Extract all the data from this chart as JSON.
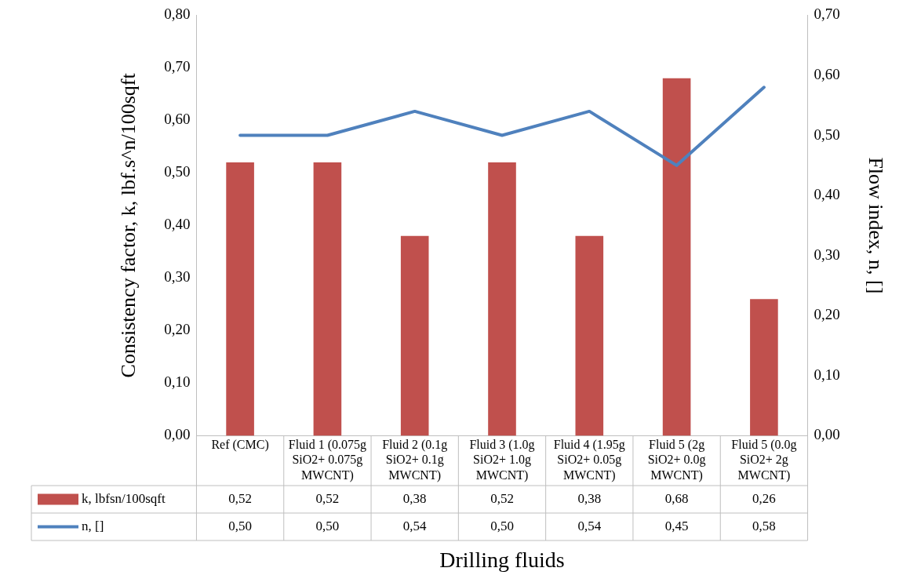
{
  "chart_data": {
    "type": "bar",
    "xlabel": "Drilling fluids",
    "ylabel": "Consistency factor, k, lbf.s^n/100sqft",
    "y2label": "Flow index, n, []",
    "categories": [
      "Ref (CMC)",
      "Fluid 1 (0.075g SiO2+ 0.075g MWCNT)",
      "Fluid 2 (0.1g SiO2+ 0.1g MWCNT)",
      "Fluid 3 (1.0g SiO2+ 1.0g MWCNT)",
      "Fluid 4 (1.95g SiO2+ 0.05g MWCNT)",
      "Fluid 5 (2g SiO2+ 0.0g MWCNT)",
      "Fluid 5 (0.0g SiO2+ 2g MWCNT)"
    ],
    "series": [
      {
        "name": "k, lbfsn/100sqft",
        "color": "#c0504d",
        "values": [
          0.52,
          0.52,
          0.38,
          0.52,
          0.38,
          0.68,
          0.26
        ],
        "value_labels": [
          "0,52",
          "0,52",
          "0,38",
          "0,52",
          "0,38",
          "0,68",
          "0,26"
        ]
      },
      {
        "name": "n, []",
        "type": "line",
        "axis": "y2",
        "color": "#4f81bd",
        "values": [
          0.5,
          0.5,
          0.54,
          0.5,
          0.54,
          0.45,
          0.58
        ],
        "value_labels": [
          "0,50",
          "0,50",
          "0,54",
          "0,50",
          "0,54",
          "0,45",
          "0,58"
        ]
      }
    ],
    "ylim": [
      0,
      0.8
    ],
    "yticks": [
      {
        "value": 0,
        "label": "0,00"
      },
      {
        "value": 0.1,
        "label": "0,10"
      },
      {
        "value": 0.2,
        "label": "0,20"
      },
      {
        "value": 0.3,
        "label": "0,30"
      },
      {
        "value": 0.4,
        "label": "0,40"
      },
      {
        "value": 0.5,
        "label": "0,50"
      },
      {
        "value": 0.6,
        "label": "0,60"
      },
      {
        "value": 0.7,
        "label": "0,70"
      },
      {
        "value": 0.8,
        "label": "0,80"
      }
    ],
    "y2lim": [
      0,
      0.7
    ],
    "y2ticks": [
      {
        "value": 0,
        "label": "0,00"
      },
      {
        "value": 0.1,
        "label": "0,10"
      },
      {
        "value": 0.2,
        "label": "0,20"
      },
      {
        "value": 0.3,
        "label": "0,30"
      },
      {
        "value": 0.4,
        "label": "0,40"
      },
      {
        "value": 0.5,
        "label": "0,50"
      },
      {
        "value": 0.6,
        "label": "0,60"
      },
      {
        "value": 0.7,
        "label": "0,70"
      }
    ],
    "grid": false,
    "legend": "bottom",
    "marker": "none",
    "line_style": "solid"
  }
}
